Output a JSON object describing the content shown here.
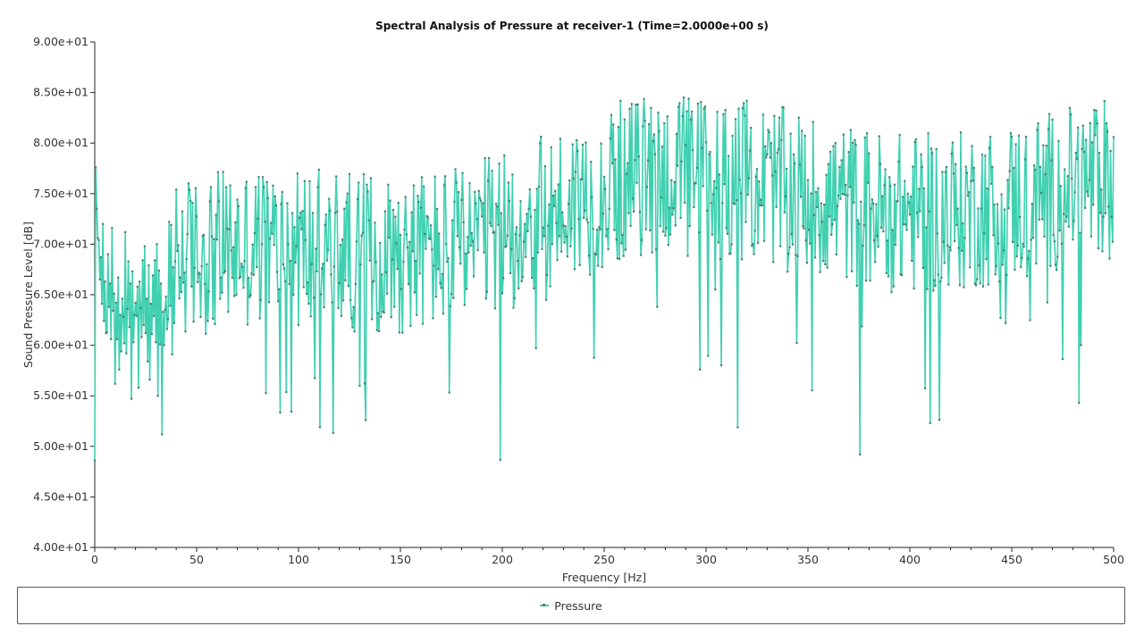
{
  "chart_data": {
    "type": "line",
    "title": "Spectral Analysis of Pressure at receiver-1 (Time=2.0000e+00 s)",
    "xlabel": "Frequency [Hz]",
    "ylabel": "Sound Pressure Level [dB]",
    "xlim": [
      0,
      500
    ],
    "ylim": [
      40,
      90
    ],
    "x_ticks": [
      0,
      50,
      100,
      150,
      200,
      250,
      300,
      350,
      400,
      450,
      500
    ],
    "x_tick_labels": [
      "0",
      "50",
      "100",
      "150",
      "200",
      "250",
      "300",
      "350",
      "400",
      "450",
      "500"
    ],
    "y_ticks": [
      40,
      45,
      50,
      55,
      60,
      65,
      70,
      75,
      80,
      85,
      90
    ],
    "y_tick_labels": [
      "4.00e+01",
      "4.50e+01",
      "5.00e+01",
      "5.50e+01",
      "6.00e+01",
      "6.50e+01",
      "7.00e+01",
      "7.50e+01",
      "8.00e+01",
      "8.50e+01",
      "9.00e+01"
    ],
    "x_step": 0.5,
    "grid": false,
    "legend_position": "bottom",
    "colors": {
      "line": "#40d0b0",
      "marker": "#4a7f72",
      "axis": "#222222"
    },
    "series": [
      {
        "name": "Pressure",
        "values": [
          48.6,
          77.6,
          73.5,
          70.6,
          70.4,
          66.5,
          68.7,
          64.1,
          72.0,
          62.4,
          66.3,
          61.2,
          61.3,
          69.0,
          63.8,
          66.1,
          60.6,
          71.6,
          63.4,
          65.1,
          56.2,
          64.2,
          60.6,
          66.7,
          57.6,
          63.0,
          59.4,
          64.6,
          62.8,
          60.2,
          71.2,
          59.2,
          63.6,
          68.3,
          61.8,
          66.1,
          54.7,
          67.3,
          60.3,
          63.0,
          64.2,
          62.9,
          65.8,
          55.8,
          66.3,
          63.7,
          60.8,
          68.4,
          62.0,
          69.8,
          61.2,
          64.6,
          58.4,
          67.9,
          56.6,
          64.1,
          61.1,
          66.9,
          62.9,
          68.4,
          60.3,
          70.0,
          55.0,
          67.4,
          60.1,
          66.1,
          51.2,
          63.3,
          60.0,
          63.5,
          64.8,
          61.6,
          62.6,
          72.2,
          63.9,
          71.9,
          59.1,
          67.7,
          62.2,
          68.3
        ]
      }
    ]
  }
}
